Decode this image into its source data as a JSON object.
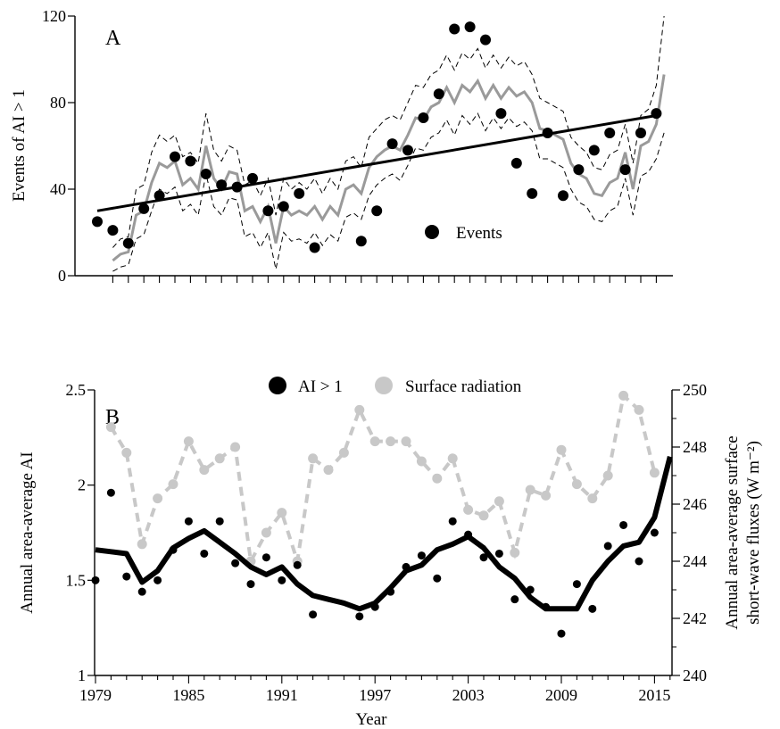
{
  "chart_data": [
    {
      "type": "line",
      "panel_label": "A",
      "ylabel": "Events of AI > 1",
      "ylim": [
        0,
        120
      ],
      "yticks": [
        0,
        40,
        80,
        120
      ],
      "xlim": [
        1979,
        2016
      ],
      "legend": {
        "label": "Events",
        "placement": "center-right"
      },
      "series": [
        {
          "name": "Events",
          "style": "points",
          "x": [
            1979,
            1980,
            1981,
            1982,
            1983,
            1984,
            1985,
            1986,
            1987,
            1988,
            1989,
            1990,
            1991,
            1992,
            1993,
            1996,
            1997,
            1998,
            1999,
            2000,
            2001,
            2002,
            2003,
            2004,
            2005,
            2006,
            2007,
            2008,
            2009,
            2010,
            2011,
            2012,
            2013,
            2014,
            2015
          ],
          "values": [
            25,
            21,
            15,
            31,
            37,
            55,
            53,
            47,
            42,
            41,
            45,
            30,
            32,
            38,
            13,
            16,
            30,
            61,
            58,
            73,
            84,
            114,
            115,
            109,
            75,
            52,
            38,
            66,
            37,
            49,
            58,
            66,
            49,
            66,
            75
          ]
        },
        {
          "style": "gray-line",
          "x": [
            1980,
            1980.5,
            1981,
            1981.5,
            1982,
            1982.5,
            1983,
            1983.5,
            1984,
            1984.5,
            1985,
            1985.5,
            1986,
            1986.5,
            1987,
            1987.5,
            1988,
            1988.5,
            1989,
            1989.5,
            1990,
            1990.5,
            1991,
            1991.5,
            1992,
            1992.5,
            1993,
            1993.5,
            1994,
            1994.5,
            1995,
            1995.5,
            1996,
            1996.5,
            1997,
            1997.5,
            1998,
            1998.5,
            1999,
            1999.5,
            2000,
            2000.5,
            2001,
            2001.5,
            2002,
            2002.5,
            2003,
            2003.5,
            2004,
            2004.5,
            2005,
            2005.5,
            2006,
            2006.5,
            2007,
            2007.5,
            2008,
            2008.5,
            2009,
            2009.5,
            2010,
            2010.5,
            2011,
            2011.5,
            2012,
            2012.5,
            2013,
            2013.5,
            2014,
            2014.5,
            2015,
            2015.5
          ],
          "values": [
            7,
            10,
            11,
            28,
            30,
            43,
            52,
            50,
            53,
            42,
            45,
            40,
            60,
            45,
            40,
            48,
            47,
            30,
            32,
            25,
            32,
            15,
            32,
            28,
            30,
            28,
            32,
            26,
            32,
            28,
            40,
            42,
            38,
            50,
            55,
            58,
            60,
            58,
            65,
            73,
            72,
            78,
            80,
            87,
            80,
            88,
            85,
            90,
            82,
            88,
            82,
            87,
            83,
            85,
            80,
            68,
            67,
            65,
            63,
            52,
            47,
            45,
            38,
            37,
            43,
            45,
            57,
            40,
            60,
            62,
            70,
            93
          ]
        },
        {
          "style": "dashed-upper",
          "x": [
            1980,
            1980.5,
            1981,
            1981.5,
            1982,
            1982.5,
            1983,
            1983.5,
            1984,
            1984.5,
            1985,
            1985.5,
            1986,
            1986.5,
            1987,
            1987.5,
            1988,
            1988.5,
            1989,
            1989.5,
            1990,
            1990.5,
            1991,
            1991.5,
            1992,
            1992.5,
            1993,
            1993.5,
            1994,
            1994.5,
            1995,
            1995.5,
            1996,
            1996.5,
            1997,
            1997.5,
            1998,
            1998.5,
            1999,
            1999.5,
            2000,
            2000.5,
            2001,
            2001.5,
            2002,
            2002.5,
            2003,
            2003.5,
            2004,
            2004.5,
            2005,
            2005.5,
            2006,
            2006.5,
            2007,
            2007.5,
            2008,
            2008.5,
            2009,
            2009.5,
            2010,
            2010.5,
            2011,
            2011.5,
            2012,
            2012.5,
            2013,
            2013.5,
            2014,
            2014.5,
            2015,
            2015.5
          ],
          "values": [
            13,
            17,
            18,
            40,
            42,
            57,
            65,
            62,
            65,
            55,
            57,
            52,
            75,
            58,
            53,
            60,
            58,
            42,
            44,
            37,
            45,
            28,
            45,
            40,
            43,
            40,
            45,
            38,
            45,
            40,
            53,
            55,
            50,
            64,
            68,
            72,
            74,
            72,
            80,
            88,
            87,
            93,
            95,
            102,
            95,
            103,
            100,
            105,
            96,
            102,
            96,
            101,
            97,
            99,
            93,
            82,
            80,
            78,
            76,
            64,
            60,
            57,
            50,
            49,
            56,
            58,
            70,
            52,
            74,
            77,
            88,
            120
          ]
        },
        {
          "style": "dashed-lower",
          "x": [
            1980,
            1980.5,
            1981,
            1981.5,
            1982,
            1982.5,
            1983,
            1983.5,
            1984,
            1984.5,
            1985,
            1985.5,
            1986,
            1986.5,
            1987,
            1987.5,
            1988,
            1988.5,
            1989,
            1989.5,
            1990,
            1990.5,
            1991,
            1991.5,
            1992,
            1992.5,
            1993,
            1993.5,
            1994,
            1994.5,
            1995,
            1995.5,
            1996,
            1996.5,
            1997,
            1997.5,
            1998,
            1998.5,
            1999,
            1999.5,
            2000,
            2000.5,
            2001,
            2001.5,
            2002,
            2002.5,
            2003,
            2003.5,
            2004,
            2004.5,
            2005,
            2005.5,
            2006,
            2006.5,
            2007,
            2007.5,
            2008,
            2008.5,
            2009,
            2009.5,
            2010,
            2010.5,
            2011,
            2011.5,
            2012,
            2012.5,
            2013,
            2013.5,
            2014,
            2014.5,
            2015,
            2015.5
          ],
          "values": [
            2,
            4,
            5,
            17,
            19,
            30,
            40,
            38,
            41,
            30,
            33,
            28,
            47,
            32,
            28,
            36,
            35,
            18,
            20,
            13,
            20,
            3,
            20,
            16,
            17,
            15,
            20,
            14,
            19,
            16,
            27,
            29,
            26,
            37,
            42,
            45,
            47,
            44,
            51,
            59,
            58,
            64,
            66,
            72,
            65,
            74,
            70,
            75,
            67,
            73,
            68,
            73,
            69,
            71,
            67,
            54,
            54,
            52,
            50,
            40,
            34,
            32,
            26,
            25,
            30,
            32,
            45,
            28,
            46,
            48,
            54,
            66
          ]
        },
        {
          "style": "trend-line",
          "x": [
            1979,
            2015
          ],
          "values": [
            30,
            74
          ]
        }
      ]
    },
    {
      "type": "line",
      "panel_label": "B",
      "xlabel": "Year",
      "ylabel": "Annual area-average AI",
      "y2label": "Annual area-average surface short-wave fluxes (W m⁻²)",
      "y2label_lines": [
        "Annual area-average surface",
        "short-wave fluxes (W m⁻²)"
      ],
      "ylim": [
        1,
        2.5
      ],
      "yticks": [
        1,
        1.5,
        2,
        2.5
      ],
      "y2lim": [
        240,
        250
      ],
      "y2ticks": [
        240,
        242,
        244,
        246,
        248,
        250
      ],
      "xlim": [
        1979,
        2016
      ],
      "xticks": [
        1979,
        1985,
        1991,
        1997,
        2003,
        2009,
        2015
      ],
      "legend_placement": "top-center",
      "series": [
        {
          "name": "AI > 1",
          "style": "points",
          "x": [
            1979,
            1980,
            1981,
            1982,
            1983,
            1984,
            1985,
            1986,
            1987,
            1988,
            1989,
            1990,
            1991,
            1992,
            1993,
            1996,
            1997,
            1998,
            1999,
            2000,
            2001,
            2002,
            2003,
            2004,
            2005,
            2006,
            2007,
            2008,
            2009,
            2010,
            2011,
            2012,
            2013,
            2014,
            2015
          ],
          "values": [
            1.5,
            1.96,
            1.52,
            1.44,
            1.5,
            1.66,
            1.81,
            1.64,
            1.81,
            1.59,
            1.48,
            1.62,
            1.5,
            1.58,
            1.32,
            1.31,
            1.36,
            1.44,
            1.57,
            1.63,
            1.51,
            1.81,
            1.74,
            1.62,
            1.64,
            1.4,
            1.45,
            1.36,
            1.22,
            1.48,
            1.35,
            1.68,
            1.79,
            1.6,
            1.75
          ]
        },
        {
          "style": "black-thick-line",
          "x": [
            1979,
            1980,
            1981,
            1982,
            1983,
            1984,
            1985,
            1986,
            1987,
            1988,
            1989,
            1990,
            1991,
            1992,
            1993,
            1994,
            1995,
            1996,
            1997,
            1998,
            1999,
            2000,
            2001,
            2002,
            2003,
            2004,
            2005,
            2006,
            2007,
            2008,
            2009,
            2010,
            2011,
            2012,
            2013,
            2014,
            2015,
            2016
          ],
          "values": [
            1.66,
            1.65,
            1.64,
            1.49,
            1.55,
            1.67,
            1.72,
            1.76,
            1.7,
            1.64,
            1.57,
            1.53,
            1.57,
            1.48,
            1.42,
            1.4,
            1.38,
            1.35,
            1.38,
            1.46,
            1.55,
            1.58,
            1.66,
            1.69,
            1.73,
            1.67,
            1.57,
            1.51,
            1.41,
            1.35,
            1.35,
            1.35,
            1.5,
            1.6,
            1.68,
            1.7,
            1.83,
            2.15
          ]
        },
        {
          "name": "Surface radiation",
          "style": "gray-dashed-points",
          "x": [
            1980,
            1981,
            1982,
            1983,
            1984,
            1985,
            1986,
            1987,
            1988,
            1989,
            1990,
            1991,
            1992,
            1993,
            1994,
            1995,
            1996,
            1997,
            1998,
            1999,
            2000,
            2001,
            2002,
            2003,
            2004,
            2005,
            2006,
            2007,
            2008,
            2009,
            2010,
            2011,
            2012,
            2013,
            2014,
            2015
          ],
          "values": [
            248.7,
            247.8,
            244.6,
            246.2,
            246.7,
            248.2,
            247.2,
            247.6,
            248.0,
            244.0,
            245.0,
            245.7,
            244.0,
            247.6,
            247.2,
            247.8,
            249.3,
            248.2,
            248.2,
            248.2,
            247.5,
            246.9,
            247.6,
            245.8,
            245.6,
            246.1,
            244.3,
            246.5,
            246.3,
            247.9,
            246.7,
            246.2,
            247.0,
            249.8,
            249.3,
            247.1
          ]
        }
      ]
    }
  ]
}
